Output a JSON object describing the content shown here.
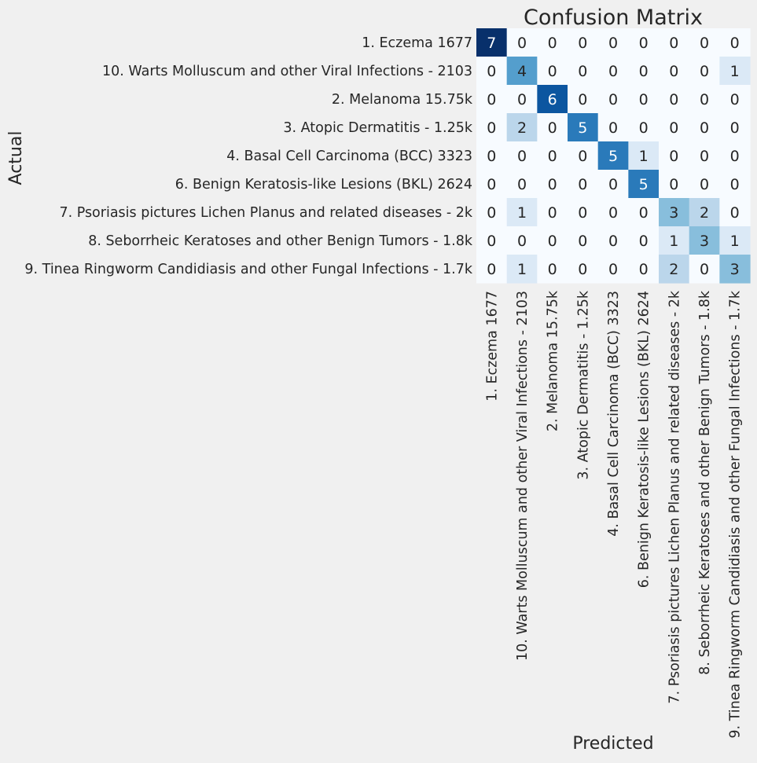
{
  "chart_data": {
    "type": "heatmap",
    "title": "Confusion Matrix",
    "xlabel": "Predicted",
    "ylabel": "Actual",
    "colormap": "Blues",
    "value_range": [
      0,
      7
    ],
    "colorbar": false,
    "grid": false,
    "labels": [
      "1. Eczema 1677",
      "10. Warts Molluscum and other Viral Infections - 2103",
      "2. Melanoma 15.75k",
      "3. Atopic Dermatitis - 1.25k",
      "4. Basal Cell Carcinoma (BCC) 3323",
      "6. Benign Keratosis-like Lesions (BKL) 2624",
      "7. Psoriasis pictures Lichen Planus and related diseases - 2k",
      "8. Seborrheic Keratoses and other Benign Tumors - 1.8k",
      "9. Tinea Ringworm Candidiasis and other Fungal Infections - 1.7k"
    ],
    "matrix": [
      [
        7,
        0,
        0,
        0,
        0,
        0,
        0,
        0,
        0
      ],
      [
        0,
        4,
        0,
        0,
        0,
        0,
        0,
        0,
        1
      ],
      [
        0,
        0,
        6,
        0,
        0,
        0,
        0,
        0,
        0
      ],
      [
        0,
        2,
        0,
        5,
        0,
        0,
        0,
        0,
        0
      ],
      [
        0,
        0,
        0,
        0,
        5,
        1,
        0,
        0,
        0
      ],
      [
        0,
        0,
        0,
        0,
        0,
        5,
        0,
        0,
        0
      ],
      [
        0,
        1,
        0,
        0,
        0,
        0,
        3,
        2,
        0
      ],
      [
        0,
        0,
        0,
        0,
        0,
        0,
        1,
        3,
        1
      ],
      [
        0,
        1,
        0,
        0,
        0,
        0,
        2,
        0,
        3
      ]
    ]
  }
}
